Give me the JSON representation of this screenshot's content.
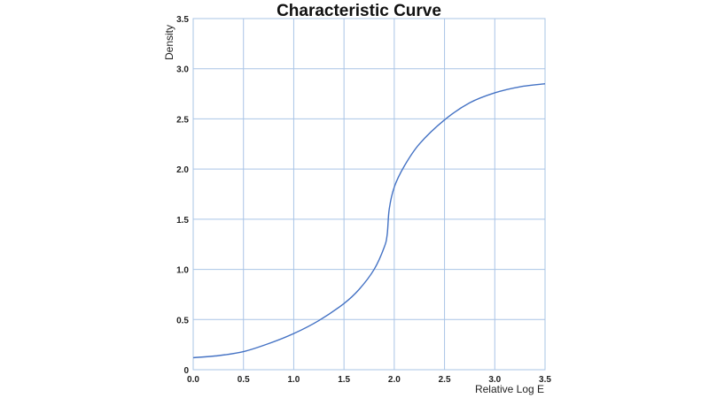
{
  "chart_data": {
    "type": "line",
    "title": "Characteristic Curve",
    "xlabel": "Relative Log E",
    "ylabel": "Density",
    "xlim": [
      0,
      3.5
    ],
    "ylim": [
      0,
      3.5
    ],
    "x_ticks": [
      "0.0",
      "0.5",
      "1.0",
      "1.5",
      "2.0",
      "2.5",
      "3.0",
      "3.5"
    ],
    "y_ticks": [
      "0",
      "0.5",
      "1.0",
      "1.5",
      "2.0",
      "2.5",
      "3.0",
      "3.5"
    ],
    "grid": true,
    "legend": "none",
    "colors": {
      "line": "#4472c4",
      "grid": "#a9c4e6"
    },
    "series": [
      {
        "x": [
          0.0,
          0.25,
          0.5,
          0.75,
          1.0,
          1.25,
          1.5,
          1.65,
          1.8,
          1.9,
          1.93,
          1.95,
          2.0,
          2.1,
          2.25,
          2.5,
          2.75,
          3.0,
          3.25,
          3.5
        ],
        "y": [
          0.12,
          0.14,
          0.18,
          0.26,
          0.36,
          0.49,
          0.66,
          0.8,
          1.0,
          1.22,
          1.35,
          1.6,
          1.82,
          2.03,
          2.25,
          2.49,
          2.66,
          2.76,
          2.82,
          2.85
        ]
      }
    ]
  }
}
